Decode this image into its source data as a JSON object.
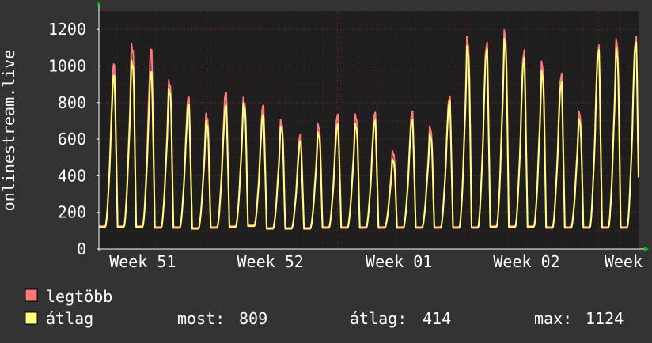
{
  "chart_data": {
    "type": "line",
    "title": "",
    "xlabel": "",
    "ylabel": "onlinestream.live",
    "ylim": [
      0,
      1300
    ],
    "yticks": [
      "0",
      "200",
      "400",
      "600",
      "800",
      "1000",
      "1200"
    ],
    "xticks": [
      "Week 51",
      "Week 52",
      "Week 01",
      "Week 02",
      "Week"
    ],
    "grid": true,
    "legend_position": "bottom-left",
    "x_unit": "day",
    "days": 29,
    "series": [
      {
        "name": "legtöbb",
        "color": "#ff7b7b",
        "daily_peaks": [
          990,
          1100,
          1070,
          905,
          815,
          725,
          840,
          810,
          770,
          690,
          615,
          670,
          720,
          720,
          730,
          525,
          735,
          655,
          815,
          1130,
          1100,
          1165,
          1060,
          1000,
          935,
          735,
          1085,
          1120,
          1130
        ],
        "daily_troughs": [
          125,
          125,
          125,
          120,
          120,
          115,
          120,
          125,
          130,
          115,
          115,
          115,
          120,
          120,
          120,
          120,
          120,
          120,
          120,
          120,
          120,
          125,
          125,
          125,
          120,
          120,
          120,
          120,
          120
        ]
      },
      {
        "name": "átlag",
        "color": "#ffff80",
        "daily_peaks": [
          930,
          1010,
          950,
          860,
          775,
          685,
          770,
          780,
          720,
          655,
          580,
          625,
          670,
          670,
          690,
          480,
          690,
          615,
          790,
          1080,
          1065,
          1120,
          1020,
          950,
          890,
          695,
          1060,
          1070,
          1100
        ],
        "daily_troughs": [
          120,
          120,
          120,
          115,
          115,
          110,
          115,
          120,
          125,
          110,
          110,
          110,
          115,
          115,
          115,
          115,
          115,
          115,
          115,
          115,
          115,
          120,
          120,
          120,
          115,
          115,
          115,
          115,
          115
        ]
      }
    ],
    "legend": [
      {
        "label": "legtöbb",
        "color": "#ff7b7b"
      },
      {
        "label": "átlag",
        "color": "#ffff80"
      }
    ],
    "stats": {
      "current": {
        "label": "most:",
        "value": "809"
      },
      "average": {
        "label": "átlag:",
        "value": "414"
      },
      "max": {
        "label": "max:",
        "value": "1124"
      }
    }
  },
  "colors": {
    "background": "#333333",
    "plot_background": "#1e1e1e",
    "grid_major": "#7a2a2a",
    "grid_minor": "#5a1e1e",
    "axis": "#ffffff",
    "arrow": "#00cc00",
    "text": "#ffffff"
  }
}
